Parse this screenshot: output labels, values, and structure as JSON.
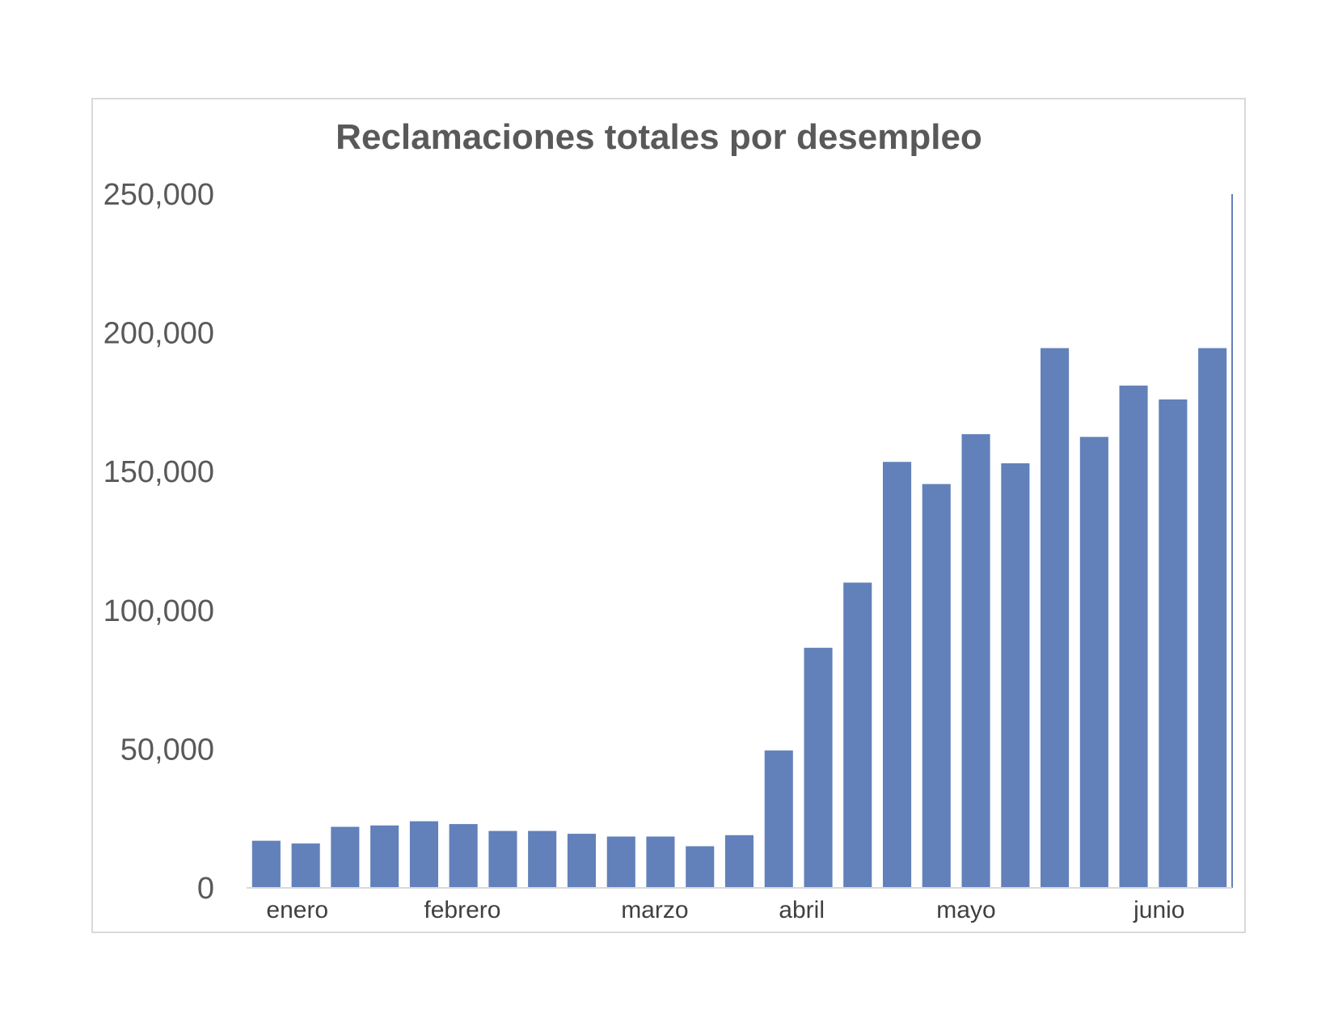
{
  "chart_data": {
    "type": "bar",
    "title": "Reclamaciones totales por desempleo",
    "xlabel": "",
    "ylabel": "",
    "ylim": [
      0,
      250000
    ],
    "yticks": [
      0,
      50000,
      100000,
      150000,
      200000,
      250000
    ],
    "ytick_labels": [
      "0",
      "50,000",
      "100,000",
      "150,000",
      "200,000",
      "250,000"
    ],
    "month_labels": [
      {
        "label": "enero",
        "bar_index": 0
      },
      {
        "label": "febrero",
        "bar_index": 4
      },
      {
        "label": "marzo",
        "bar_index": 9
      },
      {
        "label": "abril",
        "bar_index": 13
      },
      {
        "label": "mayo",
        "bar_index": 17
      },
      {
        "label": "junio",
        "bar_index": 22
      }
    ],
    "values": [
      17000,
      16000,
      22000,
      22500,
      24000,
      23000,
      20500,
      20500,
      19500,
      18500,
      18500,
      15000,
      19000,
      49500,
      86500,
      110000,
      153500,
      145500,
      163500,
      153000,
      194500,
      162500,
      181000,
      176000,
      194500
    ],
    "legend": "none",
    "grid": false,
    "colors": {
      "bar": "#6281ba",
      "axis": "#d9d9d9",
      "marker_line": "#6281ba",
      "text": "#595959"
    }
  }
}
